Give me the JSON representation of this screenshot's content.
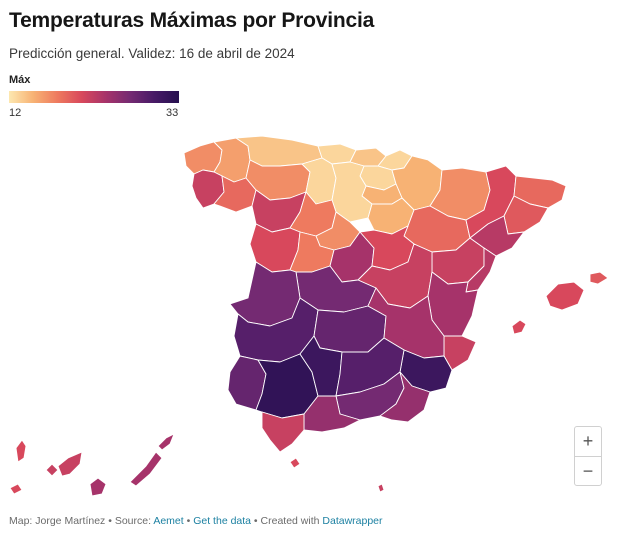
{
  "header": {
    "title": "Temperaturas Máximas por Provincia",
    "subtitle": "Predicción general. Validez: 16 de abril de 2024"
  },
  "legend": {
    "title": "Máx",
    "min_label": "12",
    "max_label": "33",
    "min_value": 12,
    "max_value": 33,
    "colors": [
      "#fde8b0",
      "#f7b274",
      "#ee7a5f",
      "#d8485c",
      "#a6336a",
      "#742a72",
      "#471a66",
      "#26104f"
    ]
  },
  "zoom": {
    "in_label": "+",
    "out_label": "−"
  },
  "footer": {
    "map_credit": "Map: Jorge Martínez",
    "separator": " • ",
    "source_label": "Source: ",
    "source_link": "Aemet",
    "data_link": "Get the data",
    "created_label": "Created with ",
    "tool_link": "Datawrapper"
  },
  "map_values": {
    "a-coruna": 17,
    "lugo": 16,
    "asturias": 14,
    "cantabria": 13,
    "bizkaia": 14,
    "gipuzkoa": 13,
    "navarra": 15,
    "pontevedra": 22,
    "ourense": 19,
    "leon": 17,
    "palencia": 13,
    "burgos": 13,
    "alava": 13,
    "la-rioja": 15,
    "huesca": 17,
    "lleida": 21,
    "girona": 19,
    "barcelona": 20,
    "zamora": 22,
    "valladolid": 18,
    "soria": 15,
    "zaragoza": 19,
    "tarragona": 23,
    "salamanca": 21,
    "segovia": 17,
    "avila": 18,
    "madrid": 24,
    "guadalajara": 21,
    "teruel": 22,
    "castellon": 23,
    "caceres": 27,
    "toledo": 27,
    "cuenca": 22,
    "valencia": 24,
    "badajoz": 29,
    "ciudad-real": 28,
    "albacete": 24,
    "alicante": 22,
    "huelva": 28,
    "sevilla": 32,
    "cordoba": 31,
    "jaen": 29,
    "granada": 27,
    "murcia": 31,
    "almeria": 25,
    "malaga": 25,
    "cadiz": 22,
    "mallorca": 21,
    "menorca": 20,
    "ibiza": 21,
    "tenerife": 22,
    "la-palma": 21,
    "gomera": 22,
    "hierro": 21,
    "gran-canaria": 24,
    "fuerteventura": 24,
    "lanzarote": 24,
    "ceuta": 21,
    "melilla": 22
  }
}
